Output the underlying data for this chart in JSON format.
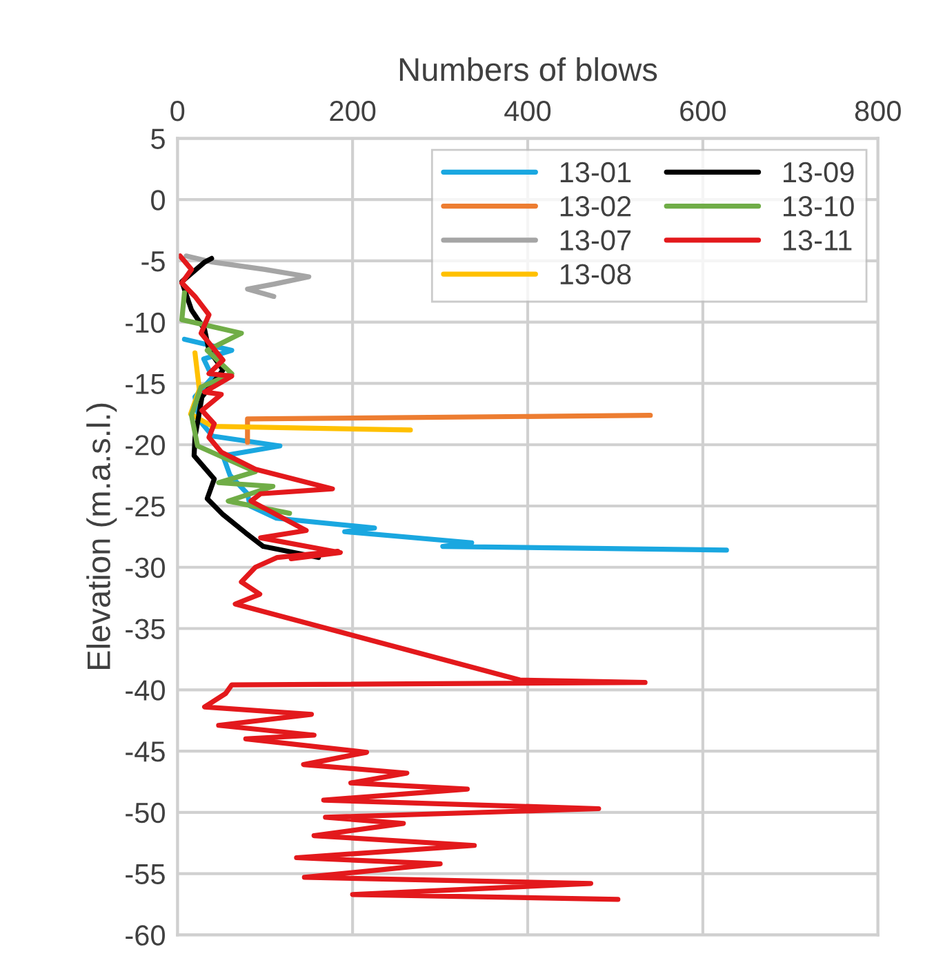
{
  "chart_data": {
    "type": "line",
    "xlabel": "Numbers of blows",
    "ylabel": "Elevation (m.a.s.l.)",
    "xlim": [
      0,
      800
    ],
    "xticks": [
      0,
      200,
      400,
      600,
      800
    ],
    "ylim": [
      -60,
      5
    ],
    "yticks": [
      -60,
      -55,
      -50,
      -45,
      -40,
      -35,
      -30,
      -25,
      -20,
      -15,
      -10,
      -5,
      0,
      5
    ],
    "grid": true,
    "legend": "top right",
    "marker": "none",
    "line_style": "solid",
    "series": [
      {
        "name": "13-01",
        "color": "#1aa7e0",
        "x": [
          8,
          62,
          30,
          40,
          20,
          25,
          40,
          117,
          52,
          60,
          80,
          83,
          113,
          225,
          191,
          336,
          303,
          627
        ],
        "values": [
          -11.4,
          -12.3,
          -13,
          -14.5,
          -16.1,
          -18,
          -19.3,
          -20.1,
          -20.9,
          -22.5,
          -24,
          -25,
          -26,
          -26.8,
          -27.1,
          -28,
          -28.3,
          -28.6
        ]
      },
      {
        "name": "13-02",
        "color": "#ed7d31",
        "x": [
          80,
          80,
          540
        ],
        "values": [
          -19.8,
          -17.9,
          -17.6
        ]
      },
      {
        "name": "13-07",
        "color": "#a5a5a5",
        "x": [
          10,
          40,
          100,
          150,
          110,
          80,
          110
        ],
        "values": [
          -4.6,
          -5.1,
          -5.7,
          -6.3,
          -6.9,
          -7.3,
          -7.9
        ]
      },
      {
        "name": "13-08",
        "color": "#ffc000",
        "x": [
          20,
          25,
          15,
          40,
          266
        ],
        "values": [
          -12.5,
          -15.5,
          -17.5,
          -18.5,
          -18.8
        ]
      },
      {
        "name": "13-09",
        "color": "#000000",
        "x": [
          39,
          31,
          5,
          16,
          31,
          36,
          52,
          28,
          20,
          19,
          42,
          34,
          52,
          78,
          98,
          161
        ],
        "values": [
          -4.8,
          -5.1,
          -6.7,
          -9,
          -10.6,
          -12.3,
          -13.9,
          -16.1,
          -19.4,
          -20.9,
          -22.8,
          -24.4,
          -25.7,
          -27.2,
          -28.3,
          -29.2
        ]
      },
      {
        "name": "13-10",
        "color": "#70ad47",
        "x": [
          8,
          5,
          73,
          34,
          62,
          27,
          16,
          23,
          89,
          47,
          109,
          58,
          128
        ],
        "values": [
          -7.6,
          -9.8,
          -10.9,
          -12.3,
          -14.2,
          -15.3,
          -17.6,
          -20.1,
          -22.2,
          -23.1,
          -23.4,
          -24.6,
          -25.6
        ]
      },
      {
        "name": "13-11",
        "color": "#e3191c",
        "x": [
          3,
          16,
          5,
          20,
          36,
          27,
          52,
          36,
          62,
          31,
          50,
          28,
          42,
          36,
          50,
          89,
          177,
          95,
          84,
          147,
          95,
          186,
          130,
          183,
          114,
          89,
          73,
          94,
          66,
          391,
          534,
          62,
          55,
          31,
          153,
          47,
          156,
          78,
          216,
          144,
          262,
          198,
          331,
          167,
          481,
          169,
          258,
          156,
          339,
          136,
          300,
          145,
          472,
          200,
          503
        ],
        "values": [
          -4.6,
          -5.7,
          -6.8,
          -7.9,
          -9.4,
          -10.9,
          -13.1,
          -14.2,
          -14.4,
          -15.7,
          -15.9,
          -17.2,
          -18.3,
          -19.4,
          -20.6,
          -22,
          -23.6,
          -24,
          -24.6,
          -27,
          -27.6,
          -28.8,
          -29.3,
          -28.7,
          -29.2,
          -30,
          -31.2,
          -32.2,
          -33,
          -39.2,
          -39.4,
          -39.6,
          -40.3,
          -41.4,
          -42,
          -42.9,
          -43.7,
          -44,
          -45.1,
          -46.1,
          -46.8,
          -47.6,
          -48.1,
          -49,
          -49.7,
          -50.4,
          -50.9,
          -51.9,
          -52.7,
          -53.7,
          -54.2,
          -55.3,
          -55.8,
          -56.7,
          -57.1
        ]
      }
    ]
  }
}
